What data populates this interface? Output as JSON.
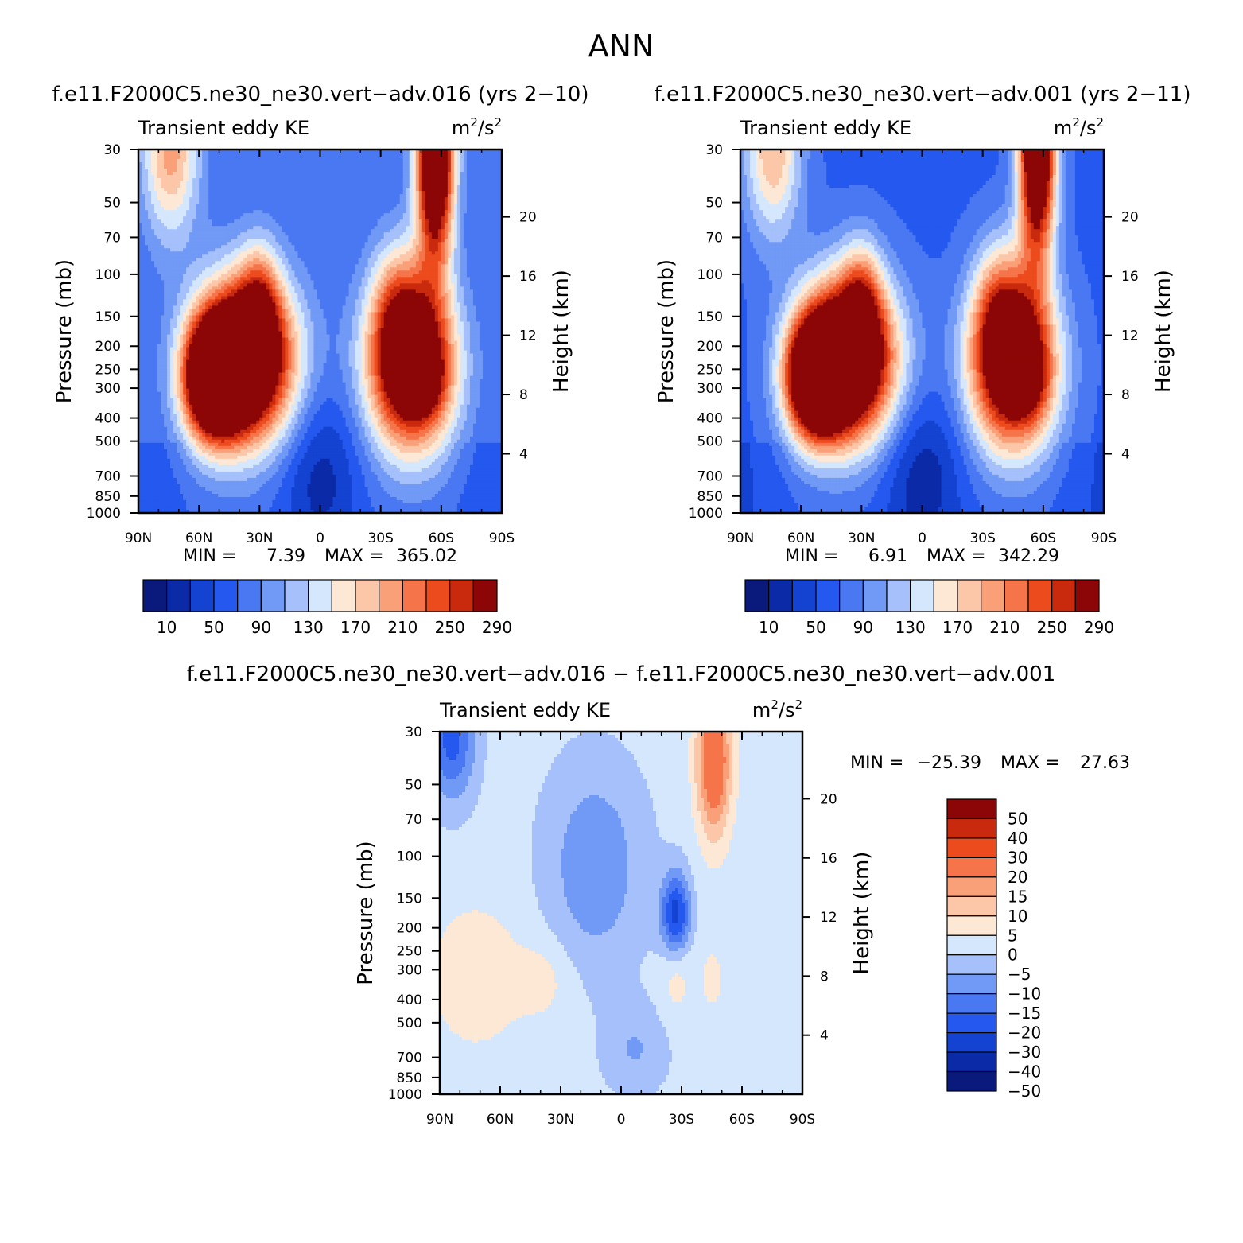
{
  "page_title": "ANN",
  "chart_data": [
    {
      "type": "heatmap",
      "panel": "top-left",
      "title": "f.e11.F2000C5.ne30_ne30.vert−adv.016 (yrs 2−10)",
      "variable": "Transient eddy KE",
      "units_base": "m",
      "units_mid": "/s",
      "units_sup": "2",
      "ylabel": "Pressure (mb)",
      "ylabel_right": "Height (km)",
      "x_ticks": [
        "90N",
        "60N",
        "30N",
        "0",
        "30S",
        "60S",
        "90S"
      ],
      "x_range": [
        90,
        -90
      ],
      "y_ticks": [
        "30",
        "50",
        "70",
        "100",
        "150",
        "200",
        "250",
        "300",
        "400",
        "500",
        "700",
        "850",
        "1000"
      ],
      "y_range_mb": [
        1000,
        30
      ],
      "height_ticks": [
        "4",
        "8",
        "12",
        "16",
        "20"
      ],
      "min_label": "MIN =",
      "min_value": "7.39",
      "max_label": "MAX =",
      "max_value": "365.02",
      "levels": [
        10,
        30,
        50,
        70,
        90,
        110,
        130,
        150,
        170,
        190,
        210,
        230,
        250,
        270,
        290
      ],
      "colorbar_labels": [
        "10",
        "50",
        "90",
        "130",
        "170",
        "210",
        "250",
        "290"
      ],
      "features": [
        {
          "lat": 37,
          "p": 230,
          "amp": 335,
          "slat": 17,
          "slogp": 0.24
        },
        {
          "lat": 53,
          "p": 275,
          "amp": 290,
          "slat": 10,
          "slogp": 0.17
        },
        {
          "lat": 30,
          "p": 130,
          "amp": 90,
          "slat": 7,
          "slogp": 0.18
        },
        {
          "lat": -45,
          "p": 240,
          "amp": 300,
          "slat": 15,
          "slogp": 0.25
        },
        {
          "lat": -53,
          "p": 275,
          "amp": 60,
          "slat": 6,
          "slogp": 0.1
        },
        {
          "lat": -38,
          "p": 130,
          "amp": 70,
          "slat": 9,
          "slogp": 0.2
        },
        {
          "lat": -57,
          "p": 30,
          "amp": 330,
          "slat": 6.5,
          "slogp": 0.33
        },
        {
          "lat": 74,
          "p": 30,
          "amp": 130,
          "slat": 10,
          "slogp": 0.26
        }
      ],
      "background": 70
    },
    {
      "type": "heatmap",
      "panel": "top-right",
      "title": "f.e11.F2000C5.ne30_ne30.vert−adv.001 (yrs 2−11)",
      "variable": "Transient eddy KE",
      "units_base": "m",
      "units_mid": "/s",
      "units_sup": "2",
      "ylabel": "Pressure (mb)",
      "ylabel_right": "Height (km)",
      "x_ticks": [
        "90N",
        "60N",
        "30N",
        "0",
        "30S",
        "60S",
        "90S"
      ],
      "x_range": [
        90,
        -90
      ],
      "y_ticks": [
        "30",
        "50",
        "70",
        "100",
        "150",
        "200",
        "250",
        "300",
        "400",
        "500",
        "700",
        "850",
        "1000"
      ],
      "y_range_mb": [
        1000,
        30
      ],
      "height_ticks": [
        "4",
        "8",
        "12",
        "16",
        "20"
      ],
      "min_label": "MIN =",
      "min_value": "6.91",
      "max_label": "MAX =",
      "max_value": "342.29",
      "levels": [
        10,
        30,
        50,
        70,
        90,
        110,
        130,
        150,
        170,
        190,
        210,
        230,
        250,
        270,
        290
      ],
      "colorbar_labels": [
        "10",
        "50",
        "90",
        "130",
        "170",
        "210",
        "250",
        "290"
      ],
      "features": [
        {
          "lat": 37,
          "p": 230,
          "amp": 335,
          "slat": 17,
          "slogp": 0.24
        },
        {
          "lat": 53,
          "p": 275,
          "amp": 275,
          "slat": 10,
          "slogp": 0.17
        },
        {
          "lat": 30,
          "p": 130,
          "amp": 95,
          "slat": 7,
          "slogp": 0.18
        },
        {
          "lat": -45,
          "p": 240,
          "amp": 300,
          "slat": 15,
          "slogp": 0.25
        },
        {
          "lat": -53,
          "p": 275,
          "amp": 60,
          "slat": 6,
          "slogp": 0.1
        },
        {
          "lat": -38,
          "p": 130,
          "amp": 80,
          "slat": 9,
          "slogp": 0.2
        },
        {
          "lat": -57,
          "p": 30,
          "amp": 310,
          "slat": 6.5,
          "slogp": 0.33
        },
        {
          "lat": 74,
          "p": 30,
          "amp": 125,
          "slat": 10,
          "slogp": 0.26
        }
      ],
      "background": 65
    },
    {
      "type": "heatmap",
      "panel": "bottom",
      "title": "f.e11.F2000C5.ne30_ne30.vert−adv.016 − f.e11.F2000C5.ne30_ne30.vert−adv.001",
      "variable": "Transient eddy KE",
      "units_base": "m",
      "units_mid": "/s",
      "units_sup": "2",
      "ylabel": "Pressure (mb)",
      "ylabel_right": "Height (km)",
      "x_ticks": [
        "90N",
        "60N",
        "30N",
        "0",
        "30S",
        "60S",
        "90S"
      ],
      "x_range": [
        90,
        -90
      ],
      "y_ticks": [
        "30",
        "50",
        "70",
        "100",
        "150",
        "200",
        "250",
        "300",
        "400",
        "500",
        "700",
        "850",
        "1000"
      ],
      "y_range_mb": [
        1000,
        30
      ],
      "height_ticks": [
        "4",
        "8",
        "12",
        "16",
        "20"
      ],
      "min_label": "MIN =",
      "min_value": "−25.39",
      "max_label": "MAX =",
      "max_value": "27.63",
      "levels": [
        -50,
        -40,
        -30,
        -20,
        -15,
        -10,
        -5,
        0,
        5,
        10,
        15,
        20,
        30,
        40,
        50
      ],
      "colorbar_labels": [
        "50",
        "40",
        "30",
        "20",
        "15",
        "10",
        "5",
        "0",
        "−5",
        "−10",
        "−15",
        "−20",
        "−30",
        "−40",
        "−50"
      ],
      "features": [
        {
          "lat": -46,
          "p": 40,
          "amp": 27,
          "slat": 6,
          "slogp": 0.22
        },
        {
          "lat": -27,
          "p": 175,
          "amp": -24,
          "slat": 5,
          "slogp": 0.12
        },
        {
          "lat": 13,
          "p": 110,
          "amp": -11,
          "slat": 17,
          "slogp": 0.3
        },
        {
          "lat": 84,
          "p": 32,
          "amp": -19,
          "slat": 8,
          "slogp": 0.18
        },
        {
          "lat": 72,
          "p": 320,
          "amp": 7,
          "slat": 17,
          "slogp": 0.22
        },
        {
          "lat": 38,
          "p": 330,
          "amp": 5,
          "slat": 10,
          "slogp": 0.12
        },
        {
          "lat": -27,
          "p": 320,
          "amp": 6,
          "slat": 5,
          "slogp": 0.12
        },
        {
          "lat": -45,
          "p": 330,
          "amp": 4,
          "slat": 6,
          "slogp": 0.15
        },
        {
          "lat": -7,
          "p": 650,
          "amp": -7,
          "slat": 11,
          "slogp": 0.13
        }
      ],
      "background": 1.8
    }
  ],
  "colors": {
    "palette": [
      "#0a1a7c",
      "#0b2aa8",
      "#1442d1",
      "#2458ee",
      "#4a78f3",
      "#7199f6",
      "#a5c0fa",
      "#d5e7fc",
      "#fde8d6",
      "#fcc7a8",
      "#f9a078",
      "#f6744a",
      "#ec4b1d",
      "#c92a0e",
      "#8d0607"
    ],
    "white": "#ffffff"
  }
}
